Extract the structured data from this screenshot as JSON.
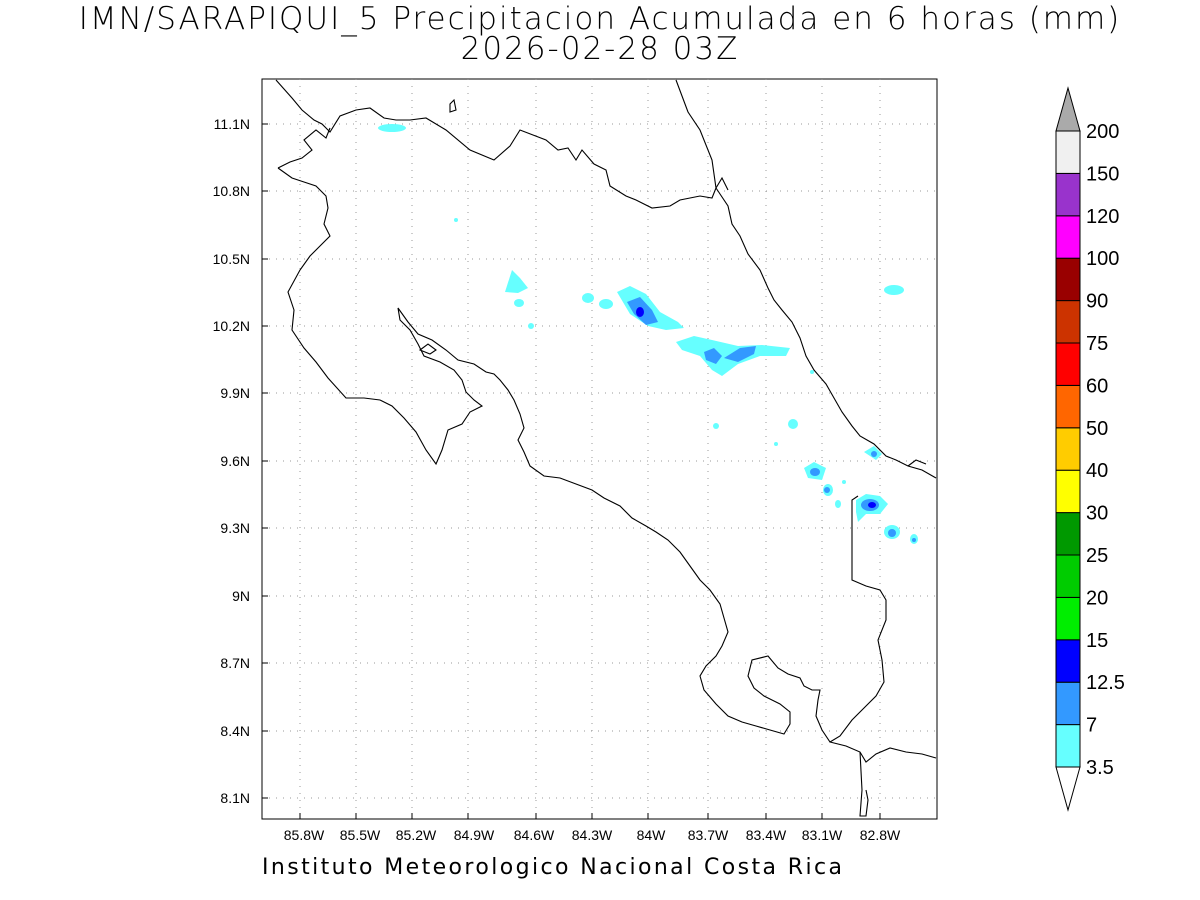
{
  "title": {
    "line1": "IMN/SARAPIQUI_5 Precipitacion Acumulada en 6 horas (mm)",
    "line2": "2026-02-28 03Z"
  },
  "footer": "Instituto Meteorologico Nacional Costa Rica",
  "map": {
    "lon_range": [
      -86.05,
      -82.65
    ],
    "lat_range": [
      8.0,
      11.35
    ],
    "lon_ticks": [
      "85.8W",
      "85.5W",
      "85.2W",
      "84.9W",
      "84.6W",
      "84.3W",
      "84W",
      "83.7W",
      "83.4W",
      "83.1W",
      "82.8W"
    ],
    "lat_ticks": [
      "11.1N",
      "10.8N",
      "10.5N",
      "10.2N",
      "9.9N",
      "9.6N",
      "9.3N",
      "9N",
      "8.7N",
      "8.4N",
      "8.1N"
    ],
    "grid": "dotted"
  },
  "colorbar": {
    "labels": [
      "3.5",
      "7",
      "12.5",
      "15",
      "20",
      "25",
      "30",
      "40",
      "50",
      "60",
      "75",
      "90",
      "100",
      "120",
      "150",
      "200"
    ],
    "colors": [
      "#66ffff",
      "#3399ff",
      "#0000ff",
      "#00ee00",
      "#00cc00",
      "#009900",
      "#ffff00",
      "#ffcc00",
      "#ff6600",
      "#ff0000",
      "#cc3300",
      "#990000",
      "#ff00ff",
      "#9933cc",
      "#f0f0f0",
      "#aaaaaa"
    ]
  }
}
